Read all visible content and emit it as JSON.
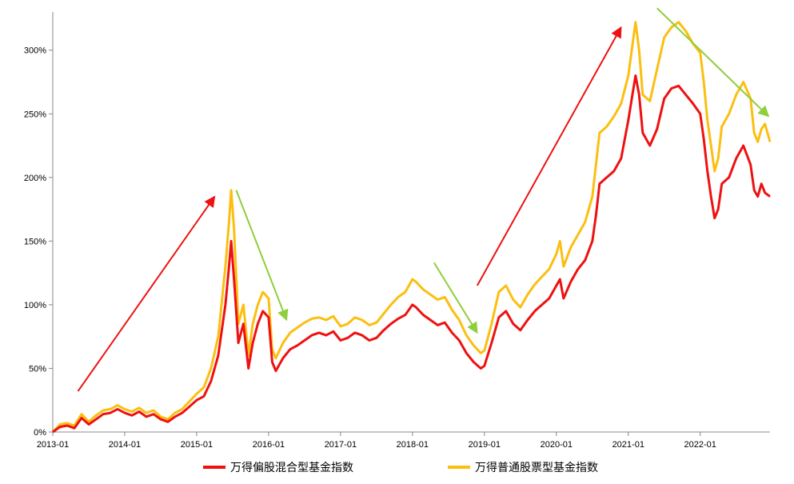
{
  "chart_data": {
    "type": "line",
    "title": "",
    "xlabel": "",
    "ylabel": "",
    "x_ticks": [
      "2013-01",
      "2014-01",
      "2015-01",
      "2016-01",
      "2017-01",
      "2018-01",
      "2019-01",
      "2020-01",
      "2021-01",
      "2022-01"
    ],
    "y_ticks": [
      "0%",
      "50%",
      "100%",
      "150%",
      "200%",
      "250%",
      "300%"
    ],
    "ylim": [
      0,
      330
    ],
    "xlim": [
      2013.0,
      2022.97
    ],
    "series": [
      {
        "name": "万得偏股混合型基金指数",
        "color": "#ee1111",
        "points": [
          [
            2013.0,
            0
          ],
          [
            2013.1,
            4
          ],
          [
            2013.2,
            5
          ],
          [
            2013.3,
            3
          ],
          [
            2013.4,
            11
          ],
          [
            2013.5,
            6
          ],
          [
            2013.6,
            10
          ],
          [
            2013.7,
            14
          ],
          [
            2013.8,
            15
          ],
          [
            2013.9,
            18
          ],
          [
            2014.0,
            15
          ],
          [
            2014.1,
            13
          ],
          [
            2014.2,
            16
          ],
          [
            2014.3,
            12
          ],
          [
            2014.4,
            14
          ],
          [
            2014.5,
            10
          ],
          [
            2014.6,
            8
          ],
          [
            2014.7,
            12
          ],
          [
            2014.8,
            15
          ],
          [
            2014.9,
            20
          ],
          [
            2015.0,
            25
          ],
          [
            2015.1,
            28
          ],
          [
            2015.2,
            40
          ],
          [
            2015.3,
            60
          ],
          [
            2015.4,
            100
          ],
          [
            2015.45,
            130
          ],
          [
            2015.48,
            150
          ],
          [
            2015.52,
            120
          ],
          [
            2015.58,
            70
          ],
          [
            2015.65,
            85
          ],
          [
            2015.72,
            50
          ],
          [
            2015.78,
            70
          ],
          [
            2015.85,
            85
          ],
          [
            2015.92,
            95
          ],
          [
            2016.0,
            90
          ],
          [
            2016.05,
            55
          ],
          [
            2016.1,
            48
          ],
          [
            2016.2,
            58
          ],
          [
            2016.3,
            65
          ],
          [
            2016.4,
            68
          ],
          [
            2016.5,
            72
          ],
          [
            2016.6,
            76
          ],
          [
            2016.7,
            78
          ],
          [
            2016.8,
            76
          ],
          [
            2016.9,
            79
          ],
          [
            2017.0,
            72
          ],
          [
            2017.1,
            74
          ],
          [
            2017.2,
            78
          ],
          [
            2017.3,
            76
          ],
          [
            2017.4,
            72
          ],
          [
            2017.5,
            74
          ],
          [
            2017.6,
            80
          ],
          [
            2017.7,
            85
          ],
          [
            2017.8,
            89
          ],
          [
            2017.9,
            92
          ],
          [
            2018.0,
            100
          ],
          [
            2018.05,
            98
          ],
          [
            2018.15,
            92
          ],
          [
            2018.25,
            88
          ],
          [
            2018.35,
            84
          ],
          [
            2018.45,
            86
          ],
          [
            2018.55,
            78
          ],
          [
            2018.65,
            72
          ],
          [
            2018.75,
            62
          ],
          [
            2018.85,
            55
          ],
          [
            2018.95,
            50
          ],
          [
            2019.0,
            52
          ],
          [
            2019.1,
            70
          ],
          [
            2019.2,
            90
          ],
          [
            2019.3,
            95
          ],
          [
            2019.4,
            85
          ],
          [
            2019.5,
            80
          ],
          [
            2019.6,
            88
          ],
          [
            2019.7,
            95
          ],
          [
            2019.8,
            100
          ],
          [
            2019.9,
            105
          ],
          [
            2020.0,
            115
          ],
          [
            2020.05,
            120
          ],
          [
            2020.1,
            105
          ],
          [
            2020.2,
            118
          ],
          [
            2020.3,
            128
          ],
          [
            2020.4,
            135
          ],
          [
            2020.5,
            150
          ],
          [
            2020.55,
            170
          ],
          [
            2020.6,
            195
          ],
          [
            2020.7,
            200
          ],
          [
            2020.8,
            205
          ],
          [
            2020.9,
            215
          ],
          [
            2021.0,
            245
          ],
          [
            2021.1,
            280
          ],
          [
            2021.15,
            265
          ],
          [
            2021.2,
            235
          ],
          [
            2021.3,
            225
          ],
          [
            2021.4,
            238
          ],
          [
            2021.5,
            262
          ],
          [
            2021.6,
            270
          ],
          [
            2021.7,
            272
          ],
          [
            2021.8,
            265
          ],
          [
            2021.9,
            258
          ],
          [
            2022.0,
            250
          ],
          [
            2022.05,
            230
          ],
          [
            2022.1,
            205
          ],
          [
            2022.15,
            185
          ],
          [
            2022.2,
            168
          ],
          [
            2022.25,
            175
          ],
          [
            2022.3,
            195
          ],
          [
            2022.4,
            200
          ],
          [
            2022.5,
            215
          ],
          [
            2022.6,
            225
          ],
          [
            2022.7,
            210
          ],
          [
            2022.75,
            190
          ],
          [
            2022.8,
            185
          ],
          [
            2022.85,
            195
          ],
          [
            2022.9,
            188
          ],
          [
            2022.97,
            185
          ]
        ]
      },
      {
        "name": "万得普通股票型基金指数",
        "color": "#fbbf10",
        "points": [
          [
            2013.0,
            0
          ],
          [
            2013.1,
            6
          ],
          [
            2013.2,
            7
          ],
          [
            2013.3,
            5
          ],
          [
            2013.4,
            14
          ],
          [
            2013.5,
            8
          ],
          [
            2013.6,
            13
          ],
          [
            2013.7,
            17
          ],
          [
            2013.8,
            18
          ],
          [
            2013.9,
            21
          ],
          [
            2014.0,
            18
          ],
          [
            2014.1,
            16
          ],
          [
            2014.2,
            19
          ],
          [
            2014.3,
            15
          ],
          [
            2014.4,
            17
          ],
          [
            2014.5,
            12
          ],
          [
            2014.6,
            10
          ],
          [
            2014.7,
            15
          ],
          [
            2014.8,
            18
          ],
          [
            2014.9,
            24
          ],
          [
            2015.0,
            30
          ],
          [
            2015.1,
            35
          ],
          [
            2015.2,
            50
          ],
          [
            2015.3,
            75
          ],
          [
            2015.4,
            130
          ],
          [
            2015.45,
            165
          ],
          [
            2015.48,
            190
          ],
          [
            2015.52,
            160
          ],
          [
            2015.58,
            85
          ],
          [
            2015.65,
            100
          ],
          [
            2015.72,
            60
          ],
          [
            2015.78,
            85
          ],
          [
            2015.85,
            100
          ],
          [
            2015.92,
            110
          ],
          [
            2016.0,
            105
          ],
          [
            2016.05,
            65
          ],
          [
            2016.1,
            58
          ],
          [
            2016.2,
            70
          ],
          [
            2016.3,
            78
          ],
          [
            2016.4,
            82
          ],
          [
            2016.5,
            86
          ],
          [
            2016.6,
            89
          ],
          [
            2016.7,
            90
          ],
          [
            2016.8,
            88
          ],
          [
            2016.9,
            91
          ],
          [
            2017.0,
            83
          ],
          [
            2017.1,
            85
          ],
          [
            2017.2,
            90
          ],
          [
            2017.3,
            88
          ],
          [
            2017.4,
            84
          ],
          [
            2017.5,
            86
          ],
          [
            2017.6,
            93
          ],
          [
            2017.7,
            100
          ],
          [
            2017.8,
            106
          ],
          [
            2017.9,
            110
          ],
          [
            2018.0,
            120
          ],
          [
            2018.05,
            118
          ],
          [
            2018.15,
            112
          ],
          [
            2018.25,
            108
          ],
          [
            2018.35,
            104
          ],
          [
            2018.45,
            106
          ],
          [
            2018.55,
            96
          ],
          [
            2018.65,
            88
          ],
          [
            2018.75,
            76
          ],
          [
            2018.85,
            68
          ],
          [
            2018.95,
            62
          ],
          [
            2019.0,
            64
          ],
          [
            2019.1,
            85
          ],
          [
            2019.2,
            110
          ],
          [
            2019.3,
            115
          ],
          [
            2019.4,
            104
          ],
          [
            2019.5,
            98
          ],
          [
            2019.6,
            108
          ],
          [
            2019.7,
            116
          ],
          [
            2019.8,
            122
          ],
          [
            2019.9,
            128
          ],
          [
            2020.0,
            140
          ],
          [
            2020.05,
            150
          ],
          [
            2020.1,
            130
          ],
          [
            2020.2,
            145
          ],
          [
            2020.3,
            155
          ],
          [
            2020.4,
            165
          ],
          [
            2020.5,
            185
          ],
          [
            2020.55,
            210
          ],
          [
            2020.6,
            235
          ],
          [
            2020.7,
            240
          ],
          [
            2020.8,
            248
          ],
          [
            2020.9,
            258
          ],
          [
            2021.0,
            280
          ],
          [
            2021.1,
            322
          ],
          [
            2021.15,
            300
          ],
          [
            2021.2,
            265
          ],
          [
            2021.3,
            260
          ],
          [
            2021.4,
            285
          ],
          [
            2021.5,
            310
          ],
          [
            2021.6,
            318
          ],
          [
            2021.7,
            322
          ],
          [
            2021.8,
            315
          ],
          [
            2021.9,
            305
          ],
          [
            2022.0,
            298
          ],
          [
            2022.05,
            275
          ],
          [
            2022.1,
            245
          ],
          [
            2022.15,
            225
          ],
          [
            2022.2,
            205
          ],
          [
            2022.25,
            215
          ],
          [
            2022.3,
            240
          ],
          [
            2022.4,
            250
          ],
          [
            2022.5,
            265
          ],
          [
            2022.6,
            275
          ],
          [
            2022.7,
            262
          ],
          [
            2022.75,
            235
          ],
          [
            2022.8,
            228
          ],
          [
            2022.85,
            238
          ],
          [
            2022.9,
            242
          ],
          [
            2022.97,
            228
          ]
        ]
      }
    ],
    "annotations": [
      {
        "type": "arrow",
        "color": "#ee1111",
        "from": [
          2013.35,
          32
        ],
        "to": [
          2015.25,
          185
        ]
      },
      {
        "type": "arrow",
        "color": "#8fce3c",
        "from": [
          2015.55,
          190
        ],
        "to": [
          2016.25,
          88
        ]
      },
      {
        "type": "arrow",
        "color": "#8fce3c",
        "from": [
          2018.3,
          133
        ],
        "to": [
          2018.9,
          78
        ]
      },
      {
        "type": "arrow",
        "color": "#ee1111",
        "from": [
          2018.9,
          115
        ],
        "to": [
          2020.9,
          318
        ]
      },
      {
        "type": "arrow",
        "color": "#8fce3c",
        "from": [
          2021.4,
          333
        ],
        "to": [
          2022.95,
          248
        ]
      }
    ],
    "legend": [
      {
        "label": "万得偏股混合型基金指数",
        "color": "#ee1111"
      },
      {
        "label": "万得普通股票型基金指数",
        "color": "#fbbf10"
      }
    ]
  }
}
